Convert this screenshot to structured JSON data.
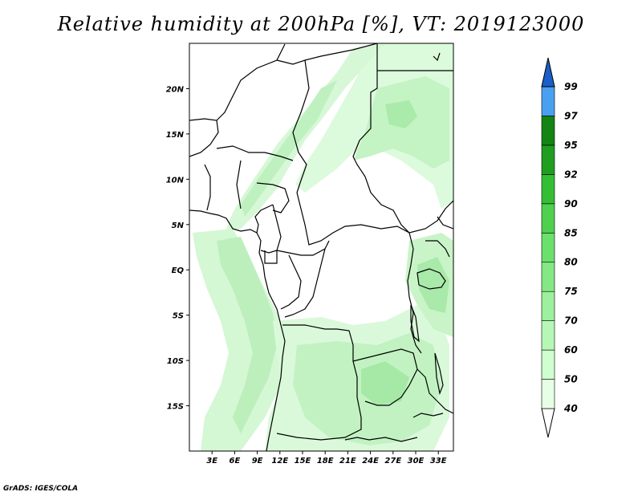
{
  "title": "Relative humidity at 200hPa [%], VT: 2019123000",
  "credit": "GrADS: IGES/COLA",
  "lat_ticks": [
    "20N",
    "15N",
    "10N",
    "5N",
    "EQ",
    "5S",
    "10S",
    "15S"
  ],
  "lon_ticks": [
    "3E",
    "6E",
    "9E",
    "12E",
    "15E",
    "18E",
    "21E",
    "24E",
    "27E",
    "30E",
    "33E"
  ],
  "colorbar": {
    "levels": [
      "40",
      "50",
      "60",
      "70",
      "75",
      "80",
      "85",
      "90",
      "92",
      "95",
      "97",
      "99"
    ],
    "colors": [
      "#ffffff",
      "#e6ffe6",
      "#cfffcf",
      "#b6f7b6",
      "#9df09d",
      "#84e984",
      "#6be06b",
      "#4fd04f",
      "#34be34",
      "#1f9e1f",
      "#148414",
      "#4aa0f0",
      "#2a7ee0",
      "#1a5fc8"
    ]
  },
  "chart_data": {
    "type": "heatmap",
    "title": "Relative humidity at 200hPa [%], VT: 2019123000",
    "variable": "Relative humidity",
    "level": "200hPa",
    "units": "%",
    "valid_time": "2019123000",
    "xlabel": "",
    "ylabel": "",
    "x_range": [
      0,
      35
    ],
    "y_range": [
      -20,
      25
    ],
    "x_ticks": [
      3,
      6,
      9,
      12,
      15,
      18,
      21,
      24,
      27,
      30,
      33
    ],
    "y_ticks": [
      20,
      15,
      10,
      5,
      0,
      -5,
      -10,
      -15
    ],
    "contour_levels": [
      40,
      50,
      60,
      70,
      75,
      80,
      85,
      90,
      92,
      95,
      97,
      99
    ],
    "regions": [
      {
        "area": "band from Gulf of Guinea coast north-east to Sahara",
        "value_range": [
          40,
          60
        ]
      },
      {
        "area": "north-east corner (Libya/Egypt, 15N-25N)",
        "value_range": [
          50,
          70
        ]
      },
      {
        "area": "western Atlantic margin, 5N-20S",
        "value_range": [
          40,
          60
        ]
      },
      {
        "area": "south-central basin, 5S-20S",
        "value_range": [
          50,
          70
        ]
      },
      {
        "area": "East African lakes region",
        "value_range": [
          50,
          70
        ]
      }
    ]
  }
}
